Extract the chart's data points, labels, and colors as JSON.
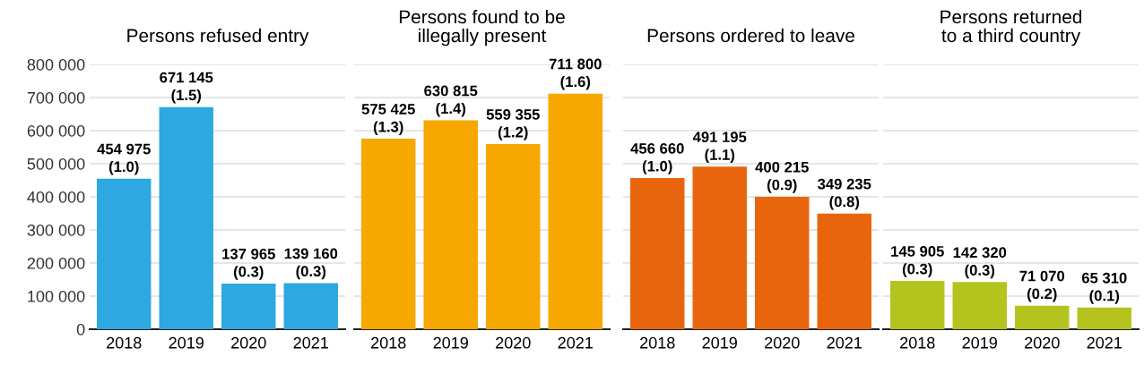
{
  "chart_data": [
    {
      "type": "bar",
      "title": "Persons refused entry",
      "categories": [
        "2018",
        "2019",
        "2020",
        "2021"
      ],
      "values": [
        454975,
        671145,
        137965,
        139160
      ],
      "color": "#2ea8e0",
      "value_labels": [
        "454 975\n(1.0)",
        "671 145\n(1.5)",
        "137 965\n(0.3)",
        "139 160\n(0.3)"
      ],
      "ylim": [
        0,
        800000
      ],
      "yticks": [
        {
          "value": 0,
          "label": "0"
        },
        {
          "value": 100000,
          "label": "100 000"
        },
        {
          "value": 200000,
          "label": "200 000"
        },
        {
          "value": 300000,
          "label": "300 000"
        },
        {
          "value": 400000,
          "label": "400 000"
        },
        {
          "value": 500000,
          "label": "500 000"
        },
        {
          "value": 600000,
          "label": "600 000"
        },
        {
          "value": 700000,
          "label": "700 000"
        },
        {
          "value": 800000,
          "label": "800 000"
        }
      ],
      "grid": "y"
    },
    {
      "type": "bar",
      "title": "Persons found to be\nillegally present",
      "categories": [
        "2018",
        "2019",
        "2020",
        "2021"
      ],
      "values": [
        575425,
        630815,
        559355,
        711800
      ],
      "color": "#f6a800",
      "value_labels": [
        "575 425\n(1.3)",
        "630 815\n(1.4)",
        "559 355\n(1.2)",
        "711 800\n(1.6)"
      ],
      "ylim": [
        0,
        800000
      ],
      "yticks": [
        0,
        100000,
        200000,
        300000,
        400000,
        500000,
        600000,
        700000,
        800000
      ],
      "grid": "y",
      "tick_labels": "x"
    },
    {
      "type": "bar",
      "title": "Persons ordered to leave",
      "categories": [
        "2018",
        "2019",
        "2020",
        "2021"
      ],
      "values": [
        456660,
        491195,
        400215,
        349235
      ],
      "color": "#e8650e",
      "value_labels": [
        "456 660\n(1.0)",
        "491 195\n(1.1)",
        "400 215\n(0.9)",
        "349 235\n(0.8)"
      ],
      "ylim": [
        0,
        800000
      ],
      "yticks": [
        0,
        100000,
        200000,
        300000,
        400000,
        500000,
        600000,
        700000,
        800000
      ],
      "grid": "y",
      "tick_labels": "x"
    },
    {
      "type": "bar",
      "title": "Persons returned\nto a third country",
      "categories": [
        "2018",
        "2019",
        "2020",
        "2021"
      ],
      "values": [
        145905,
        142320,
        71070,
        65310
      ],
      "color": "#b5c31f",
      "value_labels": [
        "145 905\n(0.3)",
        "142 320\n(0.3)",
        "71 070\n(0.2)",
        "65 310\n(0.1)"
      ],
      "ylim": [
        0,
        800000
      ],
      "yticks": [
        0,
        100000,
        200000,
        300000,
        400000,
        500000,
        600000,
        700000,
        800000
      ],
      "grid": "y",
      "tick_labels": "x"
    }
  ]
}
